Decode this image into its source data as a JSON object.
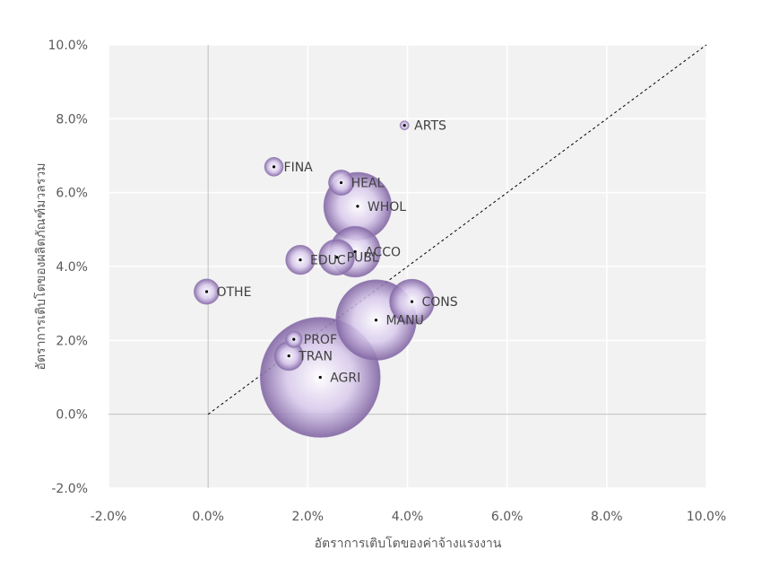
{
  "chart_data": {
    "type": "scatter",
    "subtype": "bubble",
    "title": "",
    "xlabel": "อัตราการเติบโตของค่าจ้างแรงงาน",
    "ylabel": "อัตราการเติบโตของผลิตภัณฑ์มวลรวม",
    "xlim": [
      -0.02,
      0.1
    ],
    "ylim": [
      -0.02,
      0.1
    ],
    "x_ticks": [
      "-2.0%",
      "0.0%",
      "2.0%",
      "4.0%",
      "6.0%",
      "8.0%",
      "10.0%"
    ],
    "y_ticks": [
      "-2.0%",
      "0.0%",
      "2.0%",
      "4.0%",
      "6.0%",
      "8.0%",
      "10.0%"
    ],
    "grid": true,
    "reference_line": {
      "style": "dashed",
      "from": [
        0,
        0
      ],
      "to": [
        0.1,
        0.1
      ]
    },
    "bubble_color": "#8064a2",
    "points": [
      {
        "label": "ARTS",
        "x": 0.0394,
        "y": 0.0782,
        "size": 0.6
      },
      {
        "label": "FINA",
        "x": 0.0132,
        "y": 0.067,
        "size": 2.5
      },
      {
        "label": "HEAL",
        "x": 0.0267,
        "y": 0.0627,
        "size": 4.5
      },
      {
        "label": "WHOL",
        "x": 0.03,
        "y": 0.0563,
        "size": 32
      },
      {
        "label": "ACCO",
        "x": 0.0295,
        "y": 0.044,
        "size": 18
      },
      {
        "label": "PUBL",
        "x": 0.0258,
        "y": 0.0425,
        "size": 9
      },
      {
        "label": "EDUC",
        "x": 0.0185,
        "y": 0.0418,
        "size": 6
      },
      {
        "label": "OTHE",
        "x": -0.0003,
        "y": 0.0332,
        "size": 4.5
      },
      {
        "label": "CONS",
        "x": 0.0409,
        "y": 0.0305,
        "size": 14
      },
      {
        "label": "MANU",
        "x": 0.0337,
        "y": 0.0255,
        "size": 45
      },
      {
        "label": "PROF",
        "x": 0.0172,
        "y": 0.0203,
        "size": 2
      },
      {
        "label": "TRAN",
        "x": 0.0162,
        "y": 0.0158,
        "size": 6
      },
      {
        "label": "AGRI",
        "x": 0.0225,
        "y": 0.01,
        "size": 100
      }
    ]
  }
}
